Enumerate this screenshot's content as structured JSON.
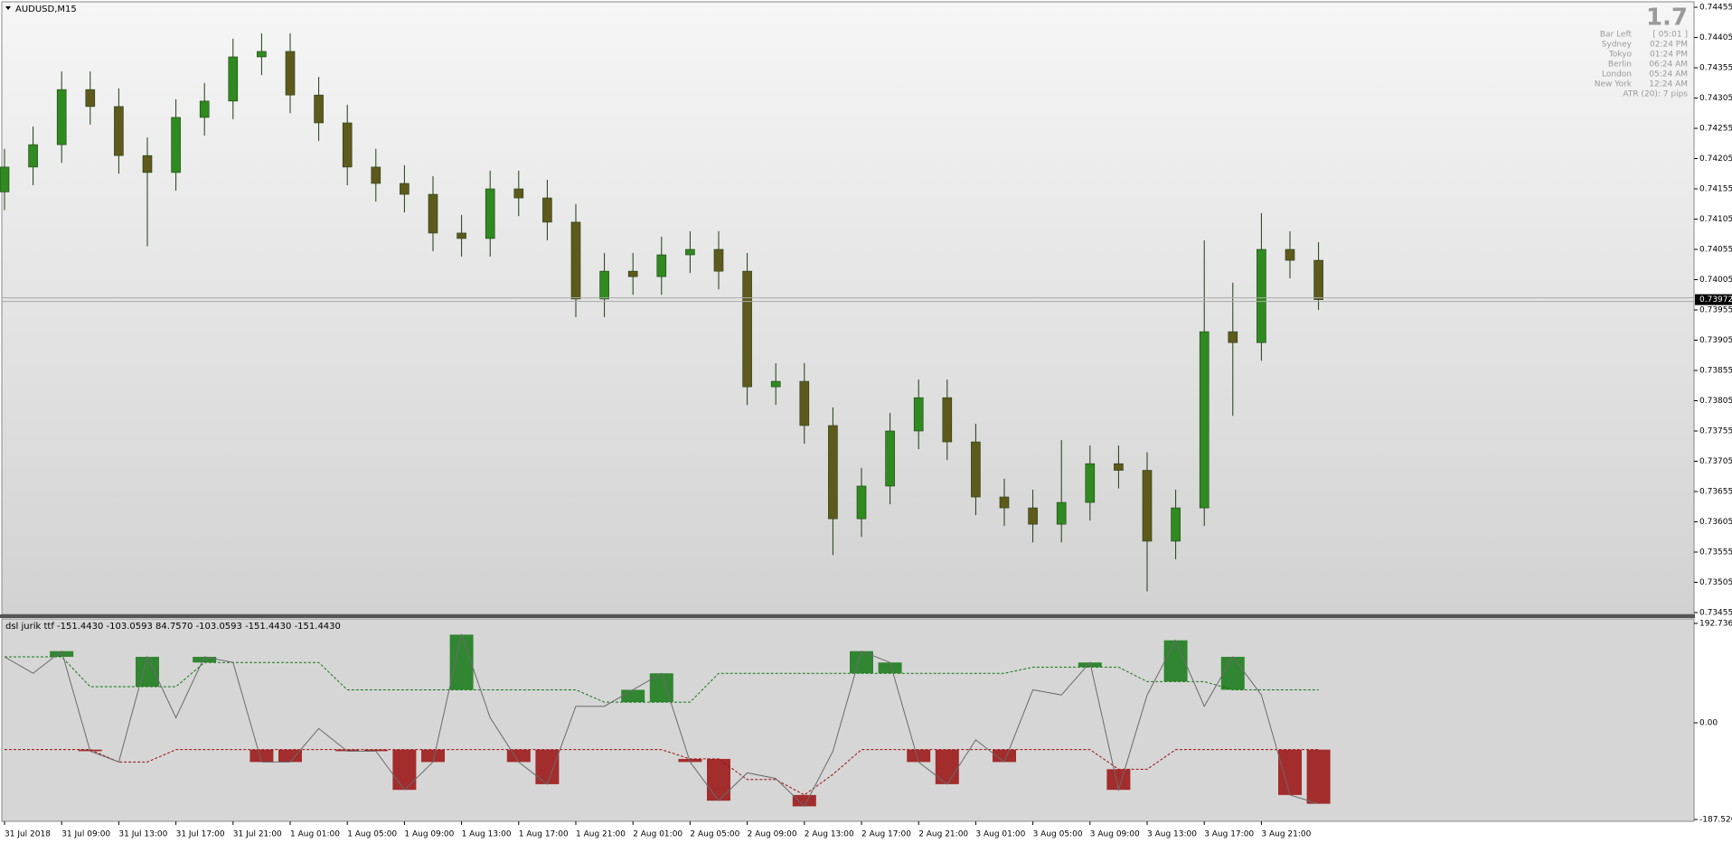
{
  "chart_data": [
    {
      "type": "candlestick",
      "title": "AUDUSD,M15",
      "open": [
        0.7415,
        0.74191,
        0.74228,
        0.74319,
        0.74291,
        0.7421,
        0.74182,
        0.74273,
        0.743,
        0.74373,
        0.74382,
        0.7431,
        0.74264,
        0.74191,
        0.74164,
        0.74146,
        0.74082,
        0.74073,
        0.74155,
        0.7414,
        0.741,
        0.73973,
        0.74019,
        0.7401,
        0.74046,
        0.74055,
        0.74019,
        0.73828,
        0.73837,
        0.73764,
        0.7361,
        0.73664,
        0.73755,
        0.7381,
        0.73737,
        0.73646,
        0.73628,
        0.73601,
        0.73637,
        0.73701,
        0.7369,
        0.73573,
        0.73628,
        0.73919,
        0.73901,
        0.74055,
        0.74037
      ],
      "high": [
        0.74221,
        0.74258,
        0.74349,
        0.74349,
        0.74321,
        0.7424,
        0.74303,
        0.7433,
        0.74403,
        0.74412,
        0.74412,
        0.7434,
        0.74294,
        0.74221,
        0.74194,
        0.74176,
        0.74112,
        0.74185,
        0.74185,
        0.7417,
        0.7413,
        0.74049,
        0.74049,
        0.74076,
        0.74085,
        0.74085,
        0.74049,
        0.73867,
        0.73867,
        0.73794,
        0.73694,
        0.73785,
        0.7384,
        0.7384,
        0.73767,
        0.73676,
        0.73658,
        0.7374,
        0.73731,
        0.73731,
        0.7372,
        0.73658,
        0.7407,
        0.74,
        0.74115,
        0.74085,
        0.74067
      ],
      "low": [
        0.7412,
        0.74161,
        0.74198,
        0.74261,
        0.7418,
        0.7406,
        0.74152,
        0.74243,
        0.7427,
        0.74343,
        0.7428,
        0.74234,
        0.74161,
        0.74134,
        0.74116,
        0.74052,
        0.74043,
        0.74043,
        0.7411,
        0.7407,
        0.73943,
        0.73943,
        0.7398,
        0.7398,
        0.74016,
        0.73989,
        0.73798,
        0.73798,
        0.73734,
        0.7355,
        0.7358,
        0.73634,
        0.73725,
        0.73707,
        0.73616,
        0.73598,
        0.73571,
        0.73571,
        0.73607,
        0.7366,
        0.7349,
        0.73543,
        0.73598,
        0.7378,
        0.73871,
        0.74007,
        0.73955
      ],
      "close": [
        0.74191,
        0.74228,
        0.74319,
        0.74291,
        0.7421,
        0.74182,
        0.74273,
        0.743,
        0.74373,
        0.74382,
        0.7431,
        0.74264,
        0.74191,
        0.74164,
        0.74146,
        0.74082,
        0.74073,
        0.74155,
        0.7414,
        0.741,
        0.73973,
        0.74019,
        0.7401,
        0.74046,
        0.74055,
        0.74019,
        0.73828,
        0.73837,
        0.73764,
        0.7361,
        0.73664,
        0.73755,
        0.7381,
        0.73737,
        0.73646,
        0.73628,
        0.73601,
        0.73637,
        0.73701,
        0.7369,
        0.73573,
        0.73628,
        0.73919,
        0.73901,
        0.74055,
        0.74037,
        0.73972
      ],
      "up_color": "#2f8a1f",
      "down_color": "#5e5a1c",
      "current_price": 0.73972,
      "ylim": [
        0.73452,
        0.74464
      ],
      "yticks": [
        0.74455,
        0.74405,
        0.74355,
        0.74305,
        0.74255,
        0.74205,
        0.74155,
        0.74105,
        0.74055,
        0.74005,
        0.73955,
        0.73905,
        0.73855,
        0.73805,
        0.73755,
        0.73705,
        0.73655,
        0.73605,
        0.73555,
        0.73505,
        0.73455
      ]
    },
    {
      "type": "indicator",
      "title": "dsl jurik ttf -151.4430 -103.0593 84.7570 -103.0593 -151.4430 -151.4430",
      "line": [
        128,
        96,
        139,
        -55,
        -76,
        128,
        10,
        128,
        117,
        -76,
        -76,
        -11,
        -55,
        -55,
        -130,
        -76,
        171,
        10,
        -76,
        -119,
        32,
        32,
        64,
        96,
        -76,
        -151,
        -97,
        -108,
        -162,
        -55,
        139,
        117,
        -76,
        -119,
        -33,
        -76,
        64,
        54,
        117,
        -130,
        54,
        160,
        32,
        128,
        54,
        -140,
        -157
      ],
      "upper": [
        128,
        128,
        128,
        70,
        70,
        70,
        70,
        117,
        117,
        117,
        117,
        117,
        64,
        64,
        64,
        64,
        64,
        64,
        64,
        64,
        64,
        40,
        40,
        40,
        40,
        96,
        96,
        96,
        96,
        96,
        96,
        96,
        96,
        96,
        96,
        96,
        108,
        108,
        108,
        108,
        80,
        80,
        80,
        64,
        64,
        64,
        64
      ],
      "lower": [
        -52,
        -52,
        -52,
        -52,
        -76,
        -76,
        -52,
        -52,
        -52,
        -52,
        -52,
        -52,
        -52,
        -52,
        -52,
        -52,
        -52,
        -52,
        -52,
        -52,
        -52,
        -52,
        -52,
        -52,
        -70,
        -70,
        -110,
        -110,
        -140,
        -100,
        -52,
        -52,
        -52,
        -52,
        -52,
        -52,
        -52,
        -52,
        -52,
        -90,
        -90,
        -52,
        -52,
        -52,
        -52,
        -52,
        -52
      ],
      "line_color": "#6a6a6a",
      "up_color": "#147814",
      "down_color": "#9a0e0e",
      "ylim": [
        -187.5208,
        192.7363
      ],
      "yticks": [
        192.7363,
        {
          "value": 0,
          "label": "0.00"
        },
        -187.5208
      ],
      "categories": [
        "31 Jul 2018",
        "31 Jul 09:00",
        "31 Jul 13:00",
        "31 Jul 17:00",
        "31 Jul 21:00",
        "1 Aug 01:00",
        "1 Aug 05:00",
        "1 Aug 09:00",
        "1 Aug 13:00",
        "1 Aug 17:00",
        "1 Aug 21:00",
        "2 Aug 01:00",
        "2 Aug 05:00",
        "2 Aug 09:00",
        "2 Aug 13:00",
        "2 Aug 17:00",
        "2 Aug 21:00",
        "3 Aug 01:00",
        "3 Aug 05:00",
        "3 Aug 09:00",
        "3 Aug 13:00",
        "3 Aug 17:00",
        "3 Aug 21:00"
      ]
    }
  ],
  "info": {
    "big": 1.7,
    "rows": [
      [
        "Bar Left",
        "[ 05:01 ]"
      ],
      [
        "Sydney",
        "02:24 PM"
      ],
      [
        "Tokyo",
        "01:24 PM"
      ],
      [
        "Berlin",
        "06:24 AM"
      ],
      [
        "London",
        "05:24 AM"
      ],
      [
        "New York",
        "12:24 AM"
      ]
    ],
    "atr": "ATR (20): 7 pips"
  }
}
